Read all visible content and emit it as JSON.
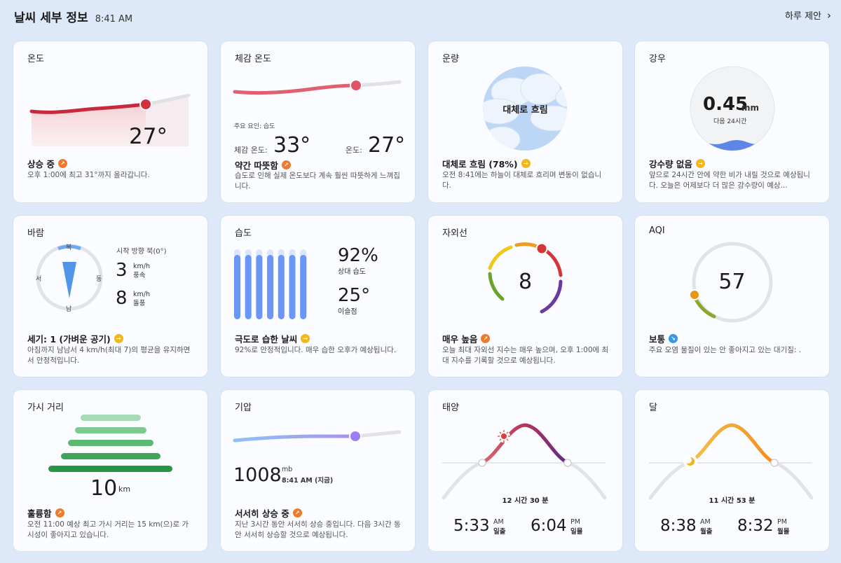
{
  "header": {
    "title": "날씨 세부 정보",
    "time": "8:41 AM",
    "link": "하루 제안",
    "chevron": "›"
  },
  "temperature": {
    "title": "온도",
    "value": "27°",
    "status": "상승 중",
    "trend": "up",
    "desc": "오후 1:00에 최고 31°까지 올라갑니다."
  },
  "feels": {
    "title": "체감 온도",
    "factor": "주요 요인: 습도",
    "feels_label": "체감 온도:",
    "feels_value": "33°",
    "temp_label": "온도:",
    "temp_value": "27°",
    "status": "약간 따뜻함",
    "trend": "up",
    "desc": "습도로 인해 실제 온도보다 계속 훨씬 따뜻하게 느껴집니다."
  },
  "cloud": {
    "title": "운량",
    "center": "대체로 흐림",
    "status": "대체로 흐림 (78%)",
    "trend": "flat",
    "desc": "오전 8:41에는 하늘이 대체로 흐리며 변동이 없습니다."
  },
  "rain": {
    "title": "강우",
    "value": "0.45",
    "unit": "mm",
    "sub": "다음 24시간",
    "status": "강수량 없음",
    "trend": "flat",
    "desc": "앞으로 24시간 안에 약한 비가 내릴 것으로 예상됩니다. 오늘은 어제보다 더 많은 강수량이 예상..."
  },
  "wind": {
    "title": "바람",
    "dir_label": "시작 방향 북(0°)",
    "n": "북",
    "s": "남",
    "e": "동",
    "w": "서",
    "speed": "3",
    "speed_unit": "km/h",
    "speed_label": "풍속",
    "gust": "8",
    "gust_unit": "km/h",
    "gust_label": "돌풍",
    "status": "세기: 1 (가벼운 공기)",
    "trend": "flat",
    "desc": "아침까지 남남서 4 km/h(최대 7)의 평균을 유지하면서 안정적입니다."
  },
  "humidity": {
    "title": "습도",
    "value": "92%",
    "value_label": "상대 습도",
    "dew": "25°",
    "dew_label": "이슬점",
    "level": 0.92,
    "bar_count": 7,
    "status": "극도로 습한 날씨",
    "trend": "flat",
    "desc": "92%로 안정적입니다. 매우 습한 오후가 예상됩니다."
  },
  "uv": {
    "title": "자외선",
    "value": "8",
    "level": 8,
    "max": 11,
    "status": "매우 높음",
    "trend": "up",
    "desc": "오늘 최대 자외선 지수는 매우 높으며, 오후 1:00에 최대 지수를 기록할 것으로 예상됩니다."
  },
  "aqi": {
    "title": "AQI",
    "value": "57",
    "level": 57,
    "status": "보통",
    "trend": "down",
    "desc": "주요 오염 물질이 있는 안 좋아지고 있는 대기질: ."
  },
  "visibility": {
    "title": "가시 거리",
    "value": "10",
    "unit": "km",
    "status": "훌륭함",
    "trend": "up",
    "desc": "오전 11:00 예상 최고 가시 거리는 15 km(으)로 가시성이 좋아지고 있습니다."
  },
  "pressure": {
    "title": "기압",
    "value": "1008",
    "unit": "mb",
    "time": "8:41 AM (지금)",
    "status": "서서히 상승 중",
    "trend": "up",
    "desc": "지난 3시간 동안 서서히 상승 중입니다. 다음 3시간 동안 서서히 상승할 것으로 예상됩니다."
  },
  "sun": {
    "title": "태양",
    "duration": "12 시간 30 분",
    "rise": "5:33",
    "rise_ampm": "AM",
    "rise_label": "일출",
    "set": "6:04",
    "set_ampm": "PM",
    "set_label": "일몰"
  },
  "moon": {
    "title": "달",
    "duration": "11 시간 53 분",
    "rise": "8:38",
    "rise_ampm": "AM",
    "rise_label": "월출",
    "set": "8:32",
    "set_ampm": "PM",
    "set_label": "월몰"
  },
  "colors": {
    "temp_line": "#c92a3b",
    "feels_line": "#e06070",
    "pressure_line": "#9d8cf5",
    "humidity_bar": "#6b96f5",
    "sun_arc": "#8b2f6f",
    "moon_arc": "#f29a1e",
    "uv_marker": "#d63535",
    "aqi_marker": "#e8951a"
  }
}
